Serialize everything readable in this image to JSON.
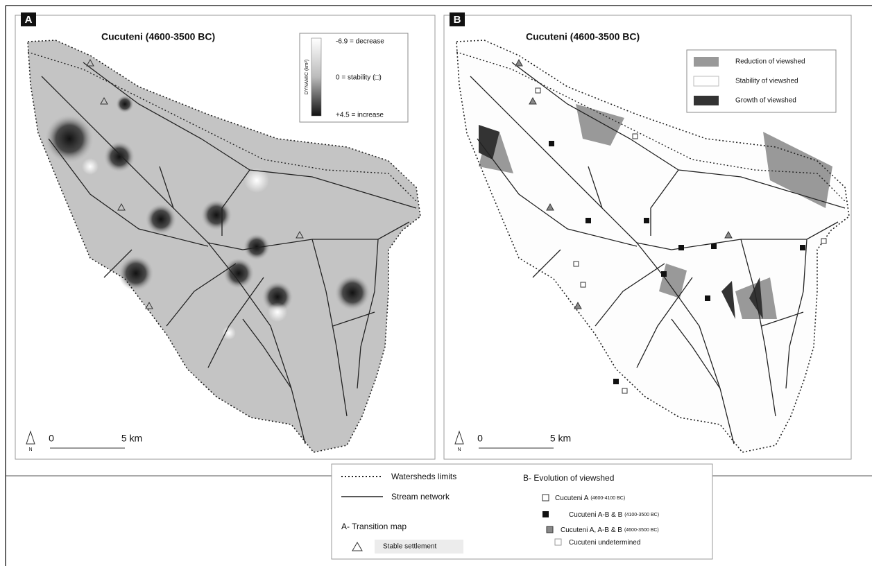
{
  "panels": [
    {
      "letter": "A",
      "title": "Cucuteni (4600-3500 BC)",
      "legend": {
        "axis_label": "DYNAMIC (km²)",
        "decrease": "-6.9 = decrease",
        "stability": "0 = stability (□)",
        "increase": "+4.5 = increase"
      },
      "scale": {
        "start": "0",
        "end": "5 km",
        "north": "N"
      }
    },
    {
      "letter": "B",
      "title": "Cucuteni (4600-3500 BC)",
      "legend": {
        "reduction": "Reduction of viewshed",
        "stability": "Stability of viewshed",
        "growth": "Growth of viewshed"
      },
      "scale": {
        "start": "0",
        "end": "5 km",
        "north": "N"
      }
    }
  ],
  "legend": {
    "watersheds": "Watersheds limits",
    "streams": "Stream network",
    "transition_title": "A- Transition map",
    "stable": "Stable settlement",
    "evolution_title": "B- Evolution of viewshed",
    "items": [
      {
        "name": "Cucuteni A",
        "dates": "(4600-4100 BC)"
      },
      {
        "name": "Cucuteni A-B & B",
        "dates": "(4100-3500 BC)"
      },
      {
        "name": "Cucuteni A, A-B & B",
        "dates": "(4600-3500 BC)"
      },
      {
        "name": "Cucuteni undetermined"
      }
    ]
  }
}
